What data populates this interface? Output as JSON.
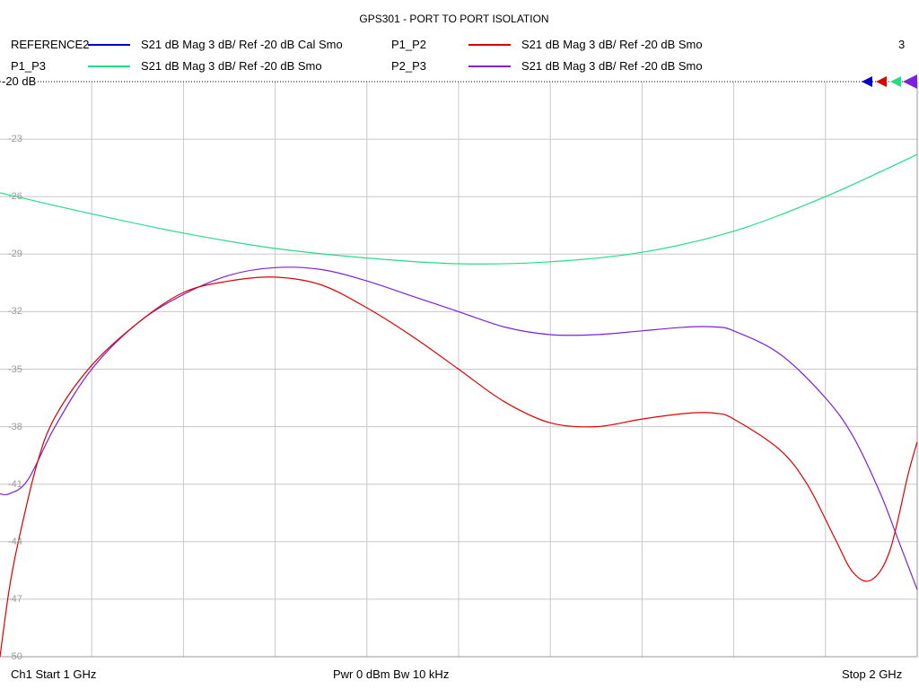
{
  "title": "GPS301 - PORT TO PORT ISOLATION",
  "legend": [
    {
      "name": "REFERENCE2",
      "desc": "S21  dB Mag  3 dB/ Ref -20 dB  Cal Smo",
      "color": "#0000cc"
    },
    {
      "name": "P1_P2",
      "desc": "S21  dB Mag  3 dB/ Ref -20 dB  Smo",
      "color": "#dd0000"
    },
    {
      "name": "P1_P3",
      "desc": "S21  dB Mag  3 dB/ Ref -20 dB  Smo",
      "color": "#22dd88"
    },
    {
      "name": "P2_P3",
      "desc": "S21  dB Mag  3 dB/ Ref -20 dB  Smo",
      "color": "#7a22dd"
    }
  ],
  "marker_count": "3",
  "ref_label": "-20 dB",
  "footer": {
    "start": "Ch1  Start  1 GHz",
    "mid": "Pwr  0 dBm  Bw  10 kHz",
    "stop": "Stop  2 GHz"
  },
  "chart_data": {
    "type": "line",
    "xlabel": "",
    "ylabel": "",
    "xlim": [
      1.0,
      2.0
    ],
    "ylim": [
      -50,
      -20
    ],
    "grid": true,
    "yticks": [
      -20,
      -23,
      -26,
      -29,
      -32,
      -35,
      -38,
      -41,
      -44,
      -47,
      -50
    ],
    "ytick_labels": [
      "-20",
      "-23",
      "-26",
      "-29",
      "-32",
      "-35",
      "-38",
      "-41",
      "-44",
      "-47",
      "-50"
    ],
    "series": [
      {
        "name": "P1_P3",
        "color": "#22dd88",
        "x": [
          1.0,
          1.1,
          1.2,
          1.3,
          1.4,
          1.5,
          1.6,
          1.7,
          1.8,
          1.9,
          2.0
        ],
        "y": [
          -25.8,
          -26.9,
          -27.9,
          -28.7,
          -29.2,
          -29.5,
          -29.4,
          -28.9,
          -27.8,
          -26.0,
          -23.8
        ]
      },
      {
        "name": "P2_P3",
        "color": "#7a22dd",
        "x": [
          1.0,
          1.01,
          1.03,
          1.06,
          1.1,
          1.15,
          1.2,
          1.25,
          1.3,
          1.35,
          1.4,
          1.45,
          1.5,
          1.55,
          1.6,
          1.65,
          1.7,
          1.75,
          1.78,
          1.8,
          1.85,
          1.9,
          1.93,
          1.96,
          1.98,
          2.0
        ],
        "y": [
          -41.5,
          -41.5,
          -40.8,
          -38.0,
          -35.0,
          -32.6,
          -31.1,
          -30.1,
          -29.7,
          -29.8,
          -30.4,
          -31.2,
          -32.0,
          -32.8,
          -33.2,
          -33.2,
          -33.0,
          -32.8,
          -32.8,
          -33.0,
          -34.2,
          -36.5,
          -38.5,
          -41.5,
          -44.0,
          -46.5
        ]
      },
      {
        "name": "P1_P2",
        "color": "#dd0000",
        "x": [
          1.0,
          1.01,
          1.02,
          1.04,
          1.06,
          1.1,
          1.15,
          1.2,
          1.25,
          1.3,
          1.35,
          1.4,
          1.45,
          1.5,
          1.55,
          1.6,
          1.65,
          1.7,
          1.75,
          1.78,
          1.8,
          1.85,
          1.88,
          1.91,
          1.93,
          1.95,
          1.97,
          1.99,
          2.0
        ],
        "y": [
          -50,
          -46.5,
          -44.0,
          -40.0,
          -37.5,
          -34.8,
          -32.6,
          -31.0,
          -30.4,
          -30.2,
          -30.6,
          -31.8,
          -33.3,
          -35.0,
          -36.7,
          -37.8,
          -38.0,
          -37.6,
          -37.3,
          -37.3,
          -37.6,
          -39.2,
          -41.0,
          -43.8,
          -45.6,
          -46.0,
          -44.5,
          -40.5,
          -38.8
        ]
      }
    ]
  }
}
